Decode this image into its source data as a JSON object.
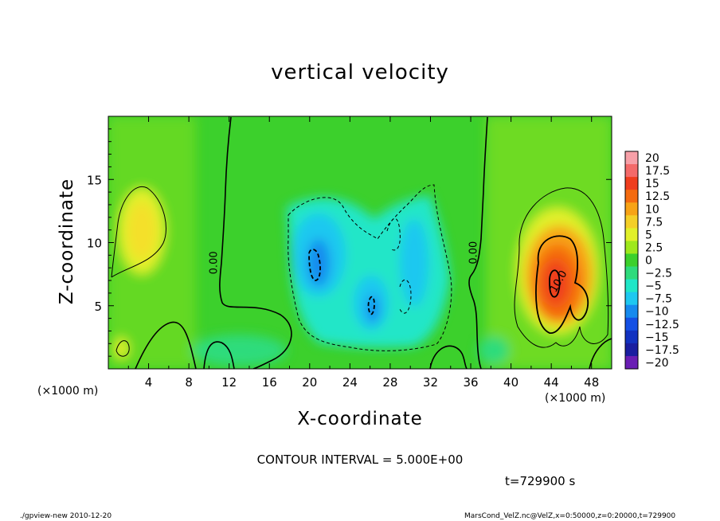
{
  "chart_data": {
    "type": "heatmap",
    "title": "vertical velocity",
    "xlabel": "X-coordinate",
    "ylabel": "Z-coordinate",
    "x_unit_label": "(×1000 m)",
    "x_ticks": [
      4,
      8,
      12,
      16,
      20,
      24,
      28,
      32,
      36,
      40,
      44,
      48
    ],
    "y_ticks": [
      5,
      10,
      15
    ],
    "xlim": [
      0,
      50
    ],
    "ylim": [
      0,
      20
    ],
    "colorbar": {
      "levels": [
        "20",
        "17.5",
        "15",
        "12.5",
        "10",
        "7.5",
        "5",
        "2.5",
        "0",
        "−2.5",
        "−5",
        "−7.5",
        "−10",
        "−12.5",
        "−15",
        "−17.5",
        "−20"
      ],
      "colors": [
        "#f7a0a8",
        "#f46a6a",
        "#ef3d1e",
        "#f46b10",
        "#f7a316",
        "#f4cf28",
        "#e1f02a",
        "#9fe81c",
        "#3cd02c",
        "#2edb7c",
        "#20e6c8",
        "#1ec8f0",
        "#168aee",
        "#1450e4",
        "#1232c0",
        "#1a1ea0",
        "#6a1eb4"
      ]
    },
    "contour_labels": [
      {
        "text": "0.00",
        "x": 10.8,
        "y": 8.4
      },
      {
        "text": "0.00",
        "x": 36.6,
        "y": 9.2
      },
      {
        "text": "10.0",
        "x": 45.0,
        "y": 6.8
      }
    ],
    "features": [
      {
        "kind": "updraft",
        "center": [
          44.2,
          7.0
        ],
        "peak": 15
      },
      {
        "kind": "updraft",
        "center": [
          3.2,
          11.0
        ],
        "peak": 7.5
      },
      {
        "kind": "downdraft",
        "center": [
          20.6,
          8.4
        ],
        "peak": -12.5
      },
      {
        "kind": "downdraft",
        "center": [
          26.4,
          5.0
        ],
        "peak": -10
      },
      {
        "kind": "downdraft",
        "center": [
          30.4,
          6.2
        ],
        "peak": -7.5
      }
    ]
  },
  "contour_interval_text": "CONTOUR INTERVAL = 5.000E+00",
  "time_text": "t=729900  s",
  "footer_left": "./gpview-new   2010-12-20",
  "footer_right": "MarsCond_VelZ.nc@VelZ,x=0:50000,z=0:20000,t=729900"
}
